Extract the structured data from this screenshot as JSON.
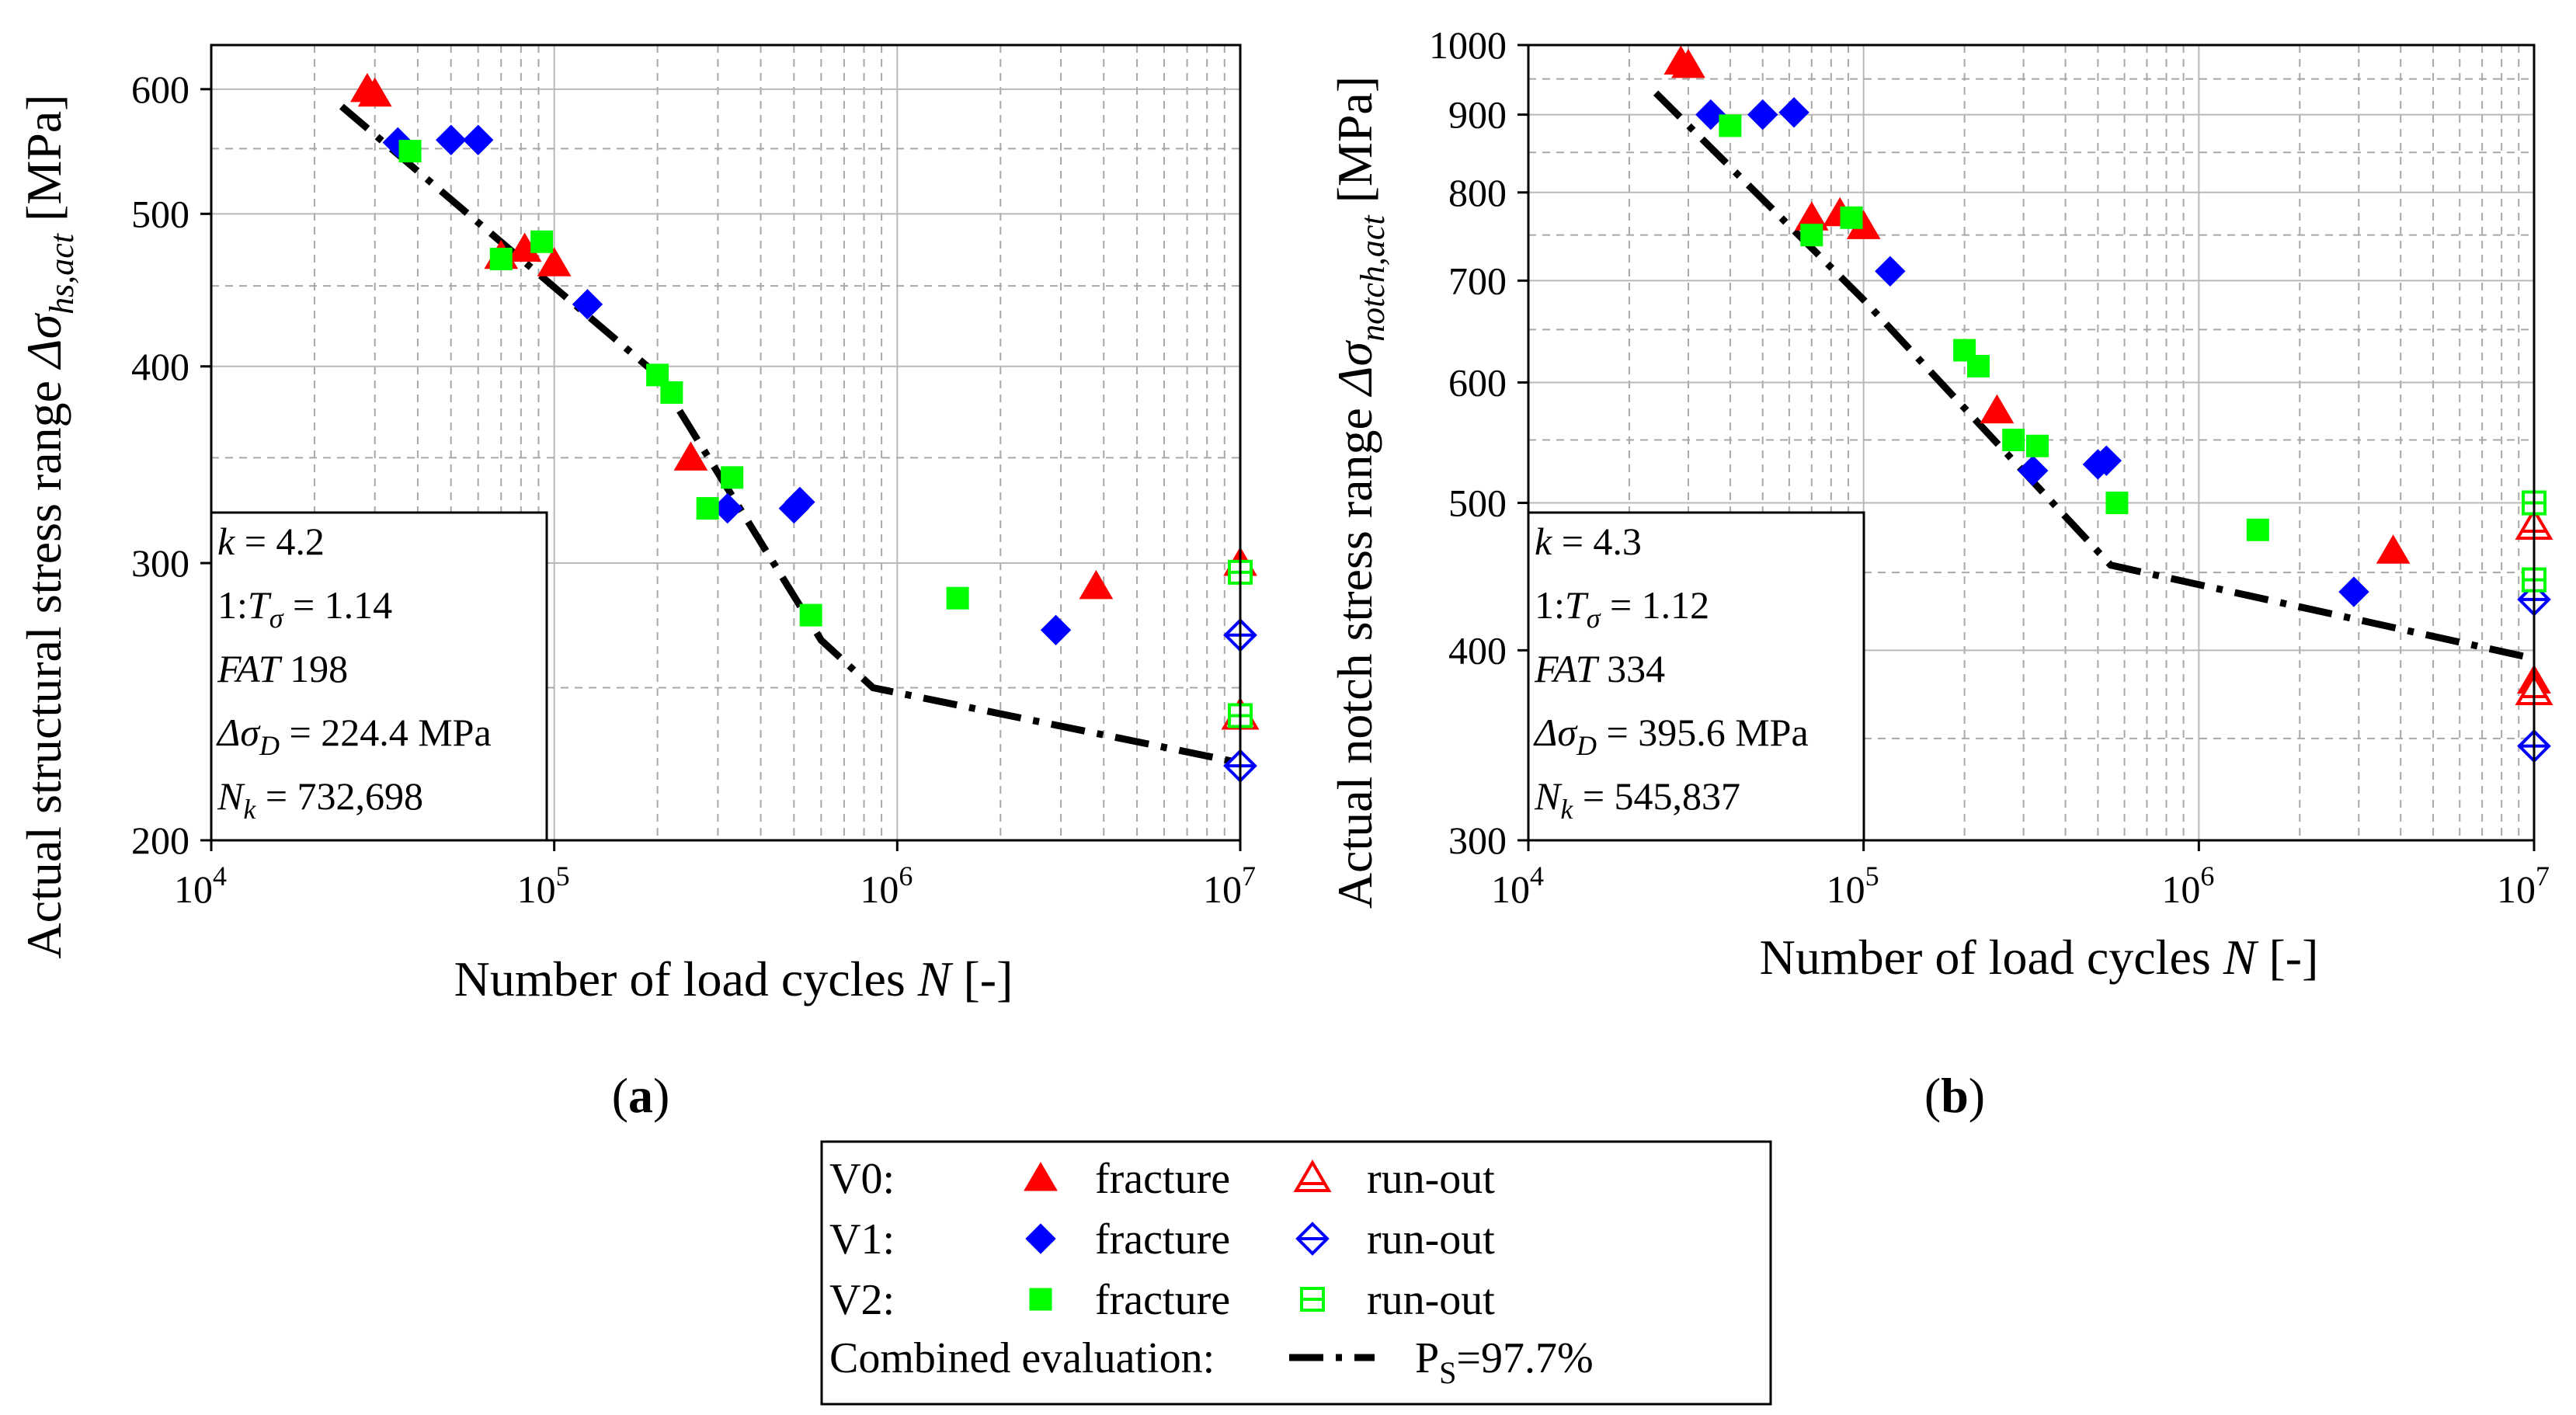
{
  "colors": {
    "V0": "#ff0000",
    "V1": "#0000ff",
    "V2": "#00ff00",
    "fit": "#000000"
  },
  "legend": {
    "rows": [
      {
        "label": "V0:",
        "color": "#ff0000",
        "marker": "triangle",
        "fracture": "fracture",
        "runout": "run-out"
      },
      {
        "label": "V1:",
        "color": "#0000ff",
        "marker": "diamond",
        "fracture": "fracture",
        "runout": "run-out"
      },
      {
        "label": "V2:",
        "color": "#00ff00",
        "marker": "square",
        "fracture": "fracture",
        "runout": "run-out"
      }
    ],
    "combined_label": "Combined evaluation:",
    "combined_value": "P",
    "combined_sub": "S",
    "combined_pct": "=97.7%"
  },
  "chart_data": [
    {
      "id": "a",
      "type": "scatter",
      "caption": "a",
      "xscale": "log",
      "yscale": "log",
      "xlim": [
        10000,
        10000000
      ],
      "ylim": [
        200,
        640
      ],
      "xlabel": "Number of load cycles",
      "xlabel_var": "N",
      "xlabel_unit": "[-]",
      "ylabel_prefix": "Actual structural stress range",
      "ylabel_symbol": "Δσ",
      "ylabel_sub": "hs,act",
      "ylabel_unit": "[MPa]",
      "x_tick_mantissa": "10",
      "x_tick_exponents": [
        "4",
        "5",
        "6",
        "7"
      ],
      "y_ticks": [
        200,
        300,
        400,
        500,
        600
      ],
      "info": [
        {
          "v": "k",
          "op": " = 4.2"
        },
        {
          "pre": "1:",
          "v": "T",
          "sub": "σ",
          "op": " = 1.14"
        },
        {
          "v": "FAT",
          "op": " 198"
        },
        {
          "v": "Δσ",
          "sub": "D",
          "op": " = 224.4 MPa"
        },
        {
          "v": "N",
          "sub": "k",
          "op": " = 732,698"
        }
      ],
      "fit_curve": {
        "x": [
          24000,
          200000,
          600000,
          850000,
          10000000
        ],
        "y": [
          585,
          395,
          268,
          250,
          224
        ]
      },
      "series": [
        {
          "name": "V0",
          "status": "fracture",
          "marker": "triangle",
          "color": "#ff0000",
          "x": [
            28500,
            30000,
            70000,
            82000,
            100000,
            250000,
            3800000,
            10000000
          ],
          "y": [
            600,
            596,
            470,
            475,
            465,
            350,
            290,
            300
          ]
        },
        {
          "name": "V0",
          "status": "run-out",
          "marker": "triangle",
          "color": "#ff0000",
          "x": [
            10000000
          ],
          "y": [
            240
          ]
        },
        {
          "name": "V1",
          "status": "fracture",
          "marker": "diamond",
          "color": "#0000ff",
          "x": [
            35000,
            50000,
            60000,
            125000,
            320000,
            500000,
            520000,
            2900000
          ],
          "y": [
            555,
            557,
            557,
            438,
            325,
            325,
            328,
            272
          ]
        },
        {
          "name": "V1",
          "status": "run-out",
          "marker": "diamond",
          "color": "#0000ff",
          "x": [
            10000000,
            10000000
          ],
          "y": [
            270,
            223
          ]
        },
        {
          "name": "V2",
          "status": "fracture",
          "marker": "square",
          "color": "#00ff00",
          "x": [
            38000,
            70000,
            92000,
            200000,
            220000,
            280000,
            330000,
            560000,
            1500000
          ],
          "y": [
            548,
            468,
            480,
            395,
            385,
            325,
            340,
            278,
            285
          ]
        },
        {
          "name": "V2",
          "status": "run-out",
          "marker": "square",
          "color": "#00ff00",
          "x": [
            10000000,
            10000000
          ],
          "y": [
            296,
            240
          ]
        }
      ]
    },
    {
      "id": "b",
      "type": "scatter",
      "caption": "b",
      "xscale": "log",
      "yscale": "log",
      "xlim": [
        10000,
        10000000
      ],
      "ylim": [
        300,
        1000
      ],
      "xlabel": "Number of load cycles",
      "xlabel_var": "N",
      "xlabel_unit": "[-]",
      "ylabel_prefix": "Actual notch stress range",
      "ylabel_symbol": "Δσ",
      "ylabel_sub": "notch,act",
      "ylabel_unit": "[MPa]",
      "x_tick_mantissa": "10",
      "x_tick_exponents": [
        "4",
        "5",
        "6",
        "7"
      ],
      "y_ticks": [
        300,
        400,
        500,
        600,
        700,
        800,
        900,
        1000
      ],
      "info": [
        {
          "v": "k",
          "op": " = 4.3"
        },
        {
          "pre": "1:",
          "v": "T",
          "sub": "σ",
          "op": " = 1.12"
        },
        {
          "v": "FAT",
          "op": " 334"
        },
        {
          "v": "Δσ",
          "sub": "D",
          "op": " = 395.6 MPa"
        },
        {
          "v": "N",
          "sub": "k",
          "op": " = 545,837"
        }
      ],
      "fit_curve": {
        "x": [
          24000,
          100000,
          545837,
          10000000
        ],
        "y": [
          930,
          680,
          455,
          395
        ]
      },
      "series": [
        {
          "name": "V0",
          "status": "fracture",
          "marker": "triangle",
          "color": "#ff0000",
          "x": [
            28500,
            30000,
            70000,
            85000,
            100000,
            250000,
            3800000,
            10000000
          ],
          "y": [
            975,
            970,
            770,
            775,
            760,
            575,
            465,
            382
          ]
        },
        {
          "name": "V0",
          "status": "run-out",
          "marker": "triangle",
          "color": "#ff0000",
          "x": [
            10000000,
            10000000
          ],
          "y": [
            483,
            376
          ]
        },
        {
          "name": "V1",
          "status": "fracture",
          "marker": "diamond",
          "color": "#0000ff",
          "x": [
            35000,
            50000,
            62000,
            120000,
            320000,
            500000,
            530000,
            2900000
          ],
          "y": [
            900,
            900,
            903,
            710,
            525,
            530,
            533,
            437
          ]
        },
        {
          "name": "V1",
          "status": "run-out",
          "marker": "diamond",
          "color": "#0000ff",
          "x": [
            10000000,
            10000000
          ],
          "y": [
            432,
            346
          ]
        },
        {
          "name": "V2",
          "status": "fracture",
          "marker": "square",
          "color": "#00ff00",
          "x": [
            40000,
            70000,
            92000,
            200000,
            220000,
            280000,
            330000,
            570000,
            1500000
          ],
          "y": [
            885,
            750,
            770,
            630,
            615,
            550,
            545,
            500,
            480
          ]
        },
        {
          "name": "V2",
          "status": "run-out",
          "marker": "square",
          "color": "#00ff00",
          "x": [
            10000000,
            10000000
          ],
          "y": [
            500,
            445
          ]
        }
      ]
    }
  ]
}
